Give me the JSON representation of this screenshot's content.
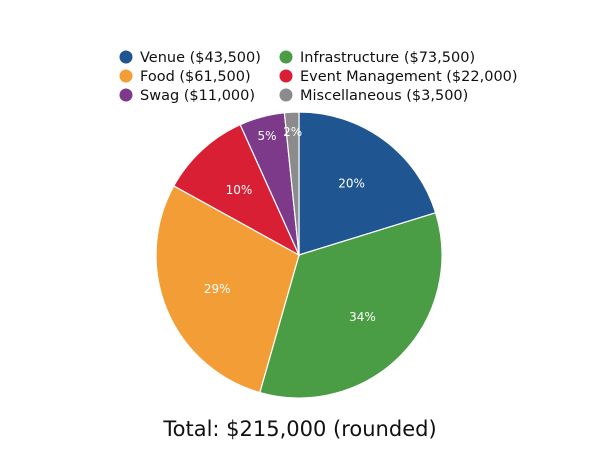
{
  "chart_data": {
    "type": "pie",
    "total_label": "Total: $215,000 (rounded)",
    "legend_placement": "top",
    "slices": [
      {
        "name": "Venue",
        "legend_label": "Venue ($43,500)",
        "value": 43500,
        "percent_label": "20%",
        "color": "#1f5591"
      },
      {
        "name": "Infrastructure",
        "legend_label": "Infrastructure ($73,500)",
        "value": 73500,
        "percent_label": "34%",
        "color": "#4a9c45"
      },
      {
        "name": "Food",
        "legend_label": "Food ($61,500)",
        "value": 61500,
        "percent_label": "29%",
        "color": "#f39d36"
      },
      {
        "name": "Event Management",
        "legend_label": "Event Management ($22,000)",
        "value": 22000,
        "percent_label": "10%",
        "color": "#d91f33"
      },
      {
        "name": "Swag",
        "legend_label": "Swag ($11,000)",
        "value": 11000,
        "percent_label": "5%",
        "color": "#7d3a8b"
      },
      {
        "name": "Miscellaneous",
        "legend_label": "Miscellaneous ($3,500)",
        "value": 3500,
        "percent_label": "2%",
        "color": "#8b8b8b"
      }
    ]
  }
}
